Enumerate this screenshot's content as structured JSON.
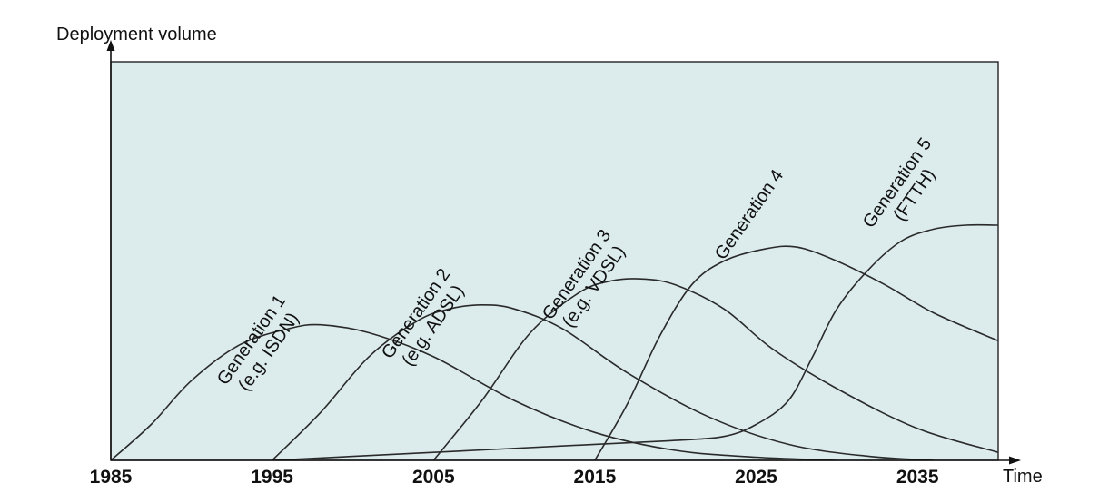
{
  "chart_data": {
    "type": "line",
    "ylabel": "Deployment volume",
    "xlabel": "Time",
    "xlim": [
      1985,
      2040
    ],
    "ylim": [
      0,
      1
    ],
    "x_ticks": [
      "1985",
      "1995",
      "2005",
      "2015",
      "2025",
      "2035"
    ],
    "background_color": "#dcebec",
    "line_color": "#2a2a2a",
    "legend": "none",
    "grid": false,
    "series": [
      {
        "name": "Generation 1 (e.g. ISDN)",
        "label_lines": [
          "Generation 1",
          "(e.g. ISDN)"
        ],
        "x": [
          1985,
          1987.5,
          1990,
          1993,
          1996,
          1998,
          2001,
          2005,
          2010,
          2015,
          2020,
          2025,
          2030
        ],
        "y": [
          0,
          0.09,
          0.2,
          0.29,
          0.33,
          0.34,
          0.32,
          0.26,
          0.15,
          0.07,
          0.025,
          0.008,
          0
        ]
      },
      {
        "name": "Generation 2 (e.g. ADSL)",
        "label_lines": [
          "Generation 2",
          "(e.g. ADSL)"
        ],
        "x": [
          1995,
          1998,
          2001,
          2004,
          2006,
          2008,
          2010,
          2013,
          2017,
          2022,
          2027,
          2032,
          2036
        ],
        "y": [
          0,
          0.12,
          0.26,
          0.35,
          0.38,
          0.39,
          0.38,
          0.33,
          0.22,
          0.11,
          0.04,
          0.01,
          0
        ]
      },
      {
        "name": "Generation 3 (e.g. VDSL)",
        "label_lines": [
          "Generation 3",
          "(e.g. VDSL)"
        ],
        "x": [
          2005,
          2008,
          2011,
          2014,
          2016,
          2018,
          2020,
          2023,
          2026,
          2030,
          2035,
          2040
        ],
        "y": [
          0,
          0.15,
          0.32,
          0.42,
          0.45,
          0.455,
          0.44,
          0.38,
          0.28,
          0.18,
          0.08,
          0.02
        ]
      },
      {
        "name": "Generation 4",
        "label_lines": [
          "Generation 4"
        ],
        "x": [
          2015,
          2017,
          2019,
          2021,
          2023,
          2025.5,
          2027.5,
          2030,
          2033,
          2036,
          2040
        ],
        "y": [
          0,
          0.14,
          0.31,
          0.44,
          0.5,
          0.53,
          0.535,
          0.5,
          0.44,
          0.37,
          0.3
        ]
      },
      {
        "name": "Generation 5 (FTTH)",
        "label_lines": [
          "Generation 5",
          "(FTTH)"
        ],
        "x": [
          1995,
          2005,
          2015,
          2020,
          2023,
          2025,
          2027,
          2028.5,
          2030,
          2032,
          2034,
          2036,
          2038,
          2040
        ],
        "y": [
          0,
          0.02,
          0.04,
          0.05,
          0.06,
          0.09,
          0.15,
          0.26,
          0.38,
          0.48,
          0.55,
          0.58,
          0.59,
          0.59
        ]
      }
    ]
  }
}
